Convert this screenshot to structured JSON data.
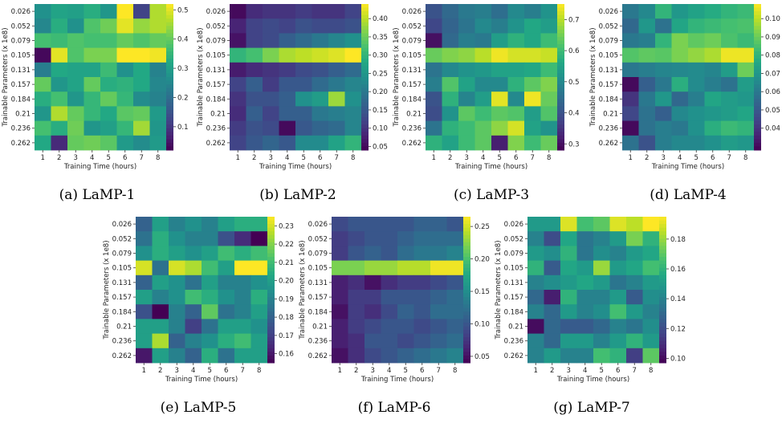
{
  "shared": {
    "x_ticks": [
      "1",
      "2",
      "3",
      "4",
      "5",
      "6",
      "7",
      "8"
    ],
    "y_ticks": [
      "0.026",
      "0.052",
      "0.079",
      "0.105",
      "0.131",
      "0.157",
      "0.184",
      "0.21",
      "0.236",
      "0.262"
    ],
    "xlabel": "Training Time (hours)",
    "ylabel": "Trainable Parameters (x 1e8)"
  },
  "chart_data": [
    {
      "type": "heatmap",
      "caption": "(a) LaMP-1",
      "vmin": 0.02,
      "vmax": 0.52,
      "colorbar_ticks": [
        "0.1",
        "0.2",
        "0.3",
        "0.4",
        "0.5"
      ],
      "colorbar_values": [
        0.1,
        0.2,
        0.3,
        0.4,
        0.5
      ],
      "values": [
        [
          0.27,
          0.31,
          0.3,
          0.33,
          0.28,
          0.52,
          0.12,
          0.46
        ],
        [
          0.25,
          0.33,
          0.27,
          0.38,
          0.41,
          0.5,
          0.44,
          0.46
        ],
        [
          0.37,
          0.36,
          0.38,
          0.37,
          0.37,
          0.4,
          0.38,
          0.4
        ],
        [
          0.03,
          0.5,
          0.38,
          0.42,
          0.42,
          0.52,
          0.52,
          0.51
        ],
        [
          0.23,
          0.32,
          0.31,
          0.31,
          0.36,
          0.27,
          0.32,
          0.24
        ],
        [
          0.4,
          0.28,
          0.31,
          0.4,
          0.33,
          0.34,
          0.32,
          0.25
        ],
        [
          0.33,
          0.37,
          0.28,
          0.35,
          0.4,
          0.35,
          0.26,
          0.24
        ],
        [
          0.28,
          0.46,
          0.4,
          0.35,
          0.32,
          0.39,
          0.4,
          0.29
        ],
        [
          0.37,
          0.33,
          0.41,
          0.28,
          0.3,
          0.35,
          0.45,
          0.28
        ],
        [
          0.32,
          0.08,
          0.4,
          0.41,
          0.39,
          0.29,
          0.26,
          0.29
        ]
      ]
    },
    {
      "type": "heatmap",
      "caption": "(b) LaMP-2",
      "vmin": 0.04,
      "vmax": 0.44,
      "colorbar_ticks": [
        "0.05",
        "0.10",
        "0.15",
        "0.20",
        "0.25",
        "0.30",
        "0.35",
        "0.40"
      ],
      "colorbar_values": [
        0.05,
        0.1,
        0.15,
        0.2,
        0.25,
        0.3,
        0.35,
        0.4
      ],
      "values": [
        [
          0.05,
          0.09,
          0.1,
          0.1,
          0.11,
          0.1,
          0.1,
          0.12
        ],
        [
          0.08,
          0.12,
          0.13,
          0.12,
          0.14,
          0.13,
          0.13,
          0.14
        ],
        [
          0.06,
          0.12,
          0.13,
          0.16,
          0.18,
          0.2,
          0.22,
          0.24
        ],
        [
          0.3,
          0.32,
          0.36,
          0.39,
          0.4,
          0.41,
          0.42,
          0.44
        ],
        [
          0.07,
          0.09,
          0.1,
          0.11,
          0.13,
          0.14,
          0.16,
          0.18
        ],
        [
          0.12,
          0.16,
          0.11,
          0.15,
          0.15,
          0.18,
          0.2,
          0.22
        ],
        [
          0.1,
          0.14,
          0.14,
          0.16,
          0.24,
          0.26,
          0.38,
          0.24
        ],
        [
          0.09,
          0.16,
          0.12,
          0.16,
          0.16,
          0.2,
          0.21,
          0.22
        ],
        [
          0.11,
          0.14,
          0.13,
          0.05,
          0.15,
          0.17,
          0.18,
          0.22
        ],
        [
          0.12,
          0.15,
          0.17,
          0.15,
          0.23,
          0.23,
          0.27,
          0.3
        ]
      ]
    },
    {
      "type": "heatmap",
      "caption": "(c) LaMP-3",
      "vmin": 0.28,
      "vmax": 0.75,
      "colorbar_ticks": [
        "0.3",
        "0.4",
        "0.5",
        "0.6",
        "0.7"
      ],
      "colorbar_values": [
        0.3,
        0.4,
        0.5,
        0.6,
        0.7
      ],
      "values": [
        [
          0.4,
          0.44,
          0.47,
          0.48,
          0.45,
          0.5,
          0.48,
          0.52
        ],
        [
          0.38,
          0.43,
          0.46,
          0.5,
          0.48,
          0.52,
          0.56,
          0.54
        ],
        [
          0.3,
          0.44,
          0.48,
          0.47,
          0.54,
          0.58,
          0.56,
          0.6
        ],
        [
          0.64,
          0.66,
          0.67,
          0.7,
          0.74,
          0.72,
          0.72,
          0.71
        ],
        [
          0.46,
          0.5,
          0.52,
          0.53,
          0.55,
          0.55,
          0.56,
          0.6
        ],
        [
          0.48,
          0.62,
          0.55,
          0.5,
          0.5,
          0.58,
          0.63,
          0.66
        ],
        [
          0.4,
          0.58,
          0.49,
          0.54,
          0.73,
          0.5,
          0.74,
          0.64
        ],
        [
          0.39,
          0.52,
          0.63,
          0.6,
          0.63,
          0.62,
          0.54,
          0.62
        ],
        [
          0.46,
          0.58,
          0.6,
          0.63,
          0.67,
          0.72,
          0.55,
          0.52
        ],
        [
          0.58,
          0.55,
          0.6,
          0.63,
          0.32,
          0.66,
          0.6,
          0.64
        ]
      ]
    },
    {
      "type": "heatmap",
      "caption": "(d) LaMP-4",
      "vmin": 0.028,
      "vmax": 0.108,
      "colorbar_ticks": [
        "0.04",
        "0.05",
        "0.06",
        "0.07",
        "0.08",
        "0.09",
        "0.10"
      ],
      "colorbar_values": [
        0.04,
        0.05,
        0.06,
        0.07,
        0.08,
        0.09,
        0.1
      ],
      "values": [
        [
          0.06,
          0.065,
          0.08,
          0.07,
          0.074,
          0.077,
          0.08,
          0.082
        ],
        [
          0.055,
          0.07,
          0.058,
          0.075,
          0.08,
          0.082,
          0.084,
          0.085
        ],
        [
          0.06,
          0.062,
          0.08,
          0.092,
          0.088,
          0.09,
          0.085,
          0.082
        ],
        [
          0.086,
          0.088,
          0.087,
          0.092,
          0.095,
          0.098,
          0.106,
          0.106
        ],
        [
          0.06,
          0.062,
          0.064,
          0.065,
          0.066,
          0.064,
          0.072,
          0.09
        ],
        [
          0.03,
          0.052,
          0.06,
          0.078,
          0.066,
          0.062,
          0.058,
          0.072
        ],
        [
          0.04,
          0.06,
          0.07,
          0.055,
          0.062,
          0.075,
          0.072,
          0.07
        ],
        [
          0.045,
          0.058,
          0.052,
          0.065,
          0.068,
          0.07,
          0.072,
          0.075
        ],
        [
          0.03,
          0.058,
          0.062,
          0.06,
          0.068,
          0.078,
          0.082,
          0.08
        ],
        [
          0.058,
          0.048,
          0.062,
          0.065,
          0.065,
          0.068,
          0.072,
          0.07
        ]
      ]
    },
    {
      "type": "heatmap",
      "caption": "(e) LaMP-5",
      "vmin": 0.155,
      "vmax": 0.235,
      "colorbar_ticks": [
        "0.16",
        "0.17",
        "0.18",
        "0.19",
        "0.20",
        "0.21",
        "0.22",
        "0.23"
      ],
      "colorbar_values": [
        0.16,
        0.17,
        0.18,
        0.19,
        0.2,
        0.21,
        0.22,
        0.23
      ],
      "values": [
        [
          0.18,
          0.2,
          0.19,
          0.195,
          0.19,
          0.2,
          0.205,
          0.205
        ],
        [
          0.185,
          0.205,
          0.195,
          0.19,
          0.19,
          0.175,
          0.165,
          0.155
        ],
        [
          0.195,
          0.205,
          0.2,
          0.195,
          0.2,
          0.21,
          0.205,
          0.21
        ],
        [
          0.23,
          0.185,
          0.23,
          0.225,
          0.21,
          0.2,
          0.235,
          0.235
        ],
        [
          0.18,
          0.2,
          0.195,
          0.185,
          0.2,
          0.19,
          0.19,
          0.195
        ],
        [
          0.2,
          0.19,
          0.195,
          0.21,
          0.205,
          0.195,
          0.19,
          0.205
        ],
        [
          0.175,
          0.155,
          0.19,
          0.18,
          0.215,
          0.185,
          0.19,
          0.2
        ],
        [
          0.2,
          0.2,
          0.19,
          0.17,
          0.185,
          0.2,
          0.2,
          0.195
        ],
        [
          0.2,
          0.225,
          0.18,
          0.19,
          0.195,
          0.205,
          0.21,
          0.2
        ],
        [
          0.16,
          0.2,
          0.19,
          0.18,
          0.205,
          0.185,
          0.2,
          0.2
        ]
      ]
    },
    {
      "type": "heatmap",
      "caption": "(f) LaMP-6",
      "vmin": 0.04,
      "vmax": 0.265,
      "colorbar_ticks": [
        "0.05",
        "0.10",
        "0.15",
        "0.20",
        "0.25"
      ],
      "colorbar_values": [
        0.05,
        0.1,
        0.15,
        0.2,
        0.25
      ],
      "values": [
        [
          0.09,
          0.1,
          0.1,
          0.1,
          0.1,
          0.11,
          0.11,
          0.1
        ],
        [
          0.08,
          0.09,
          0.1,
          0.1,
          0.11,
          0.12,
          0.12,
          0.12
        ],
        [
          0.08,
          0.1,
          0.11,
          0.1,
          0.12,
          0.13,
          0.13,
          0.14
        ],
        [
          0.22,
          0.22,
          0.23,
          0.23,
          0.24,
          0.24,
          0.26,
          0.26
        ],
        [
          0.06,
          0.07,
          0.05,
          0.07,
          0.08,
          0.08,
          0.09,
          0.1
        ],
        [
          0.06,
          0.08,
          0.08,
          0.1,
          0.1,
          0.1,
          0.11,
          0.12
        ],
        [
          0.05,
          0.08,
          0.07,
          0.09,
          0.11,
          0.1,
          0.12,
          0.12
        ],
        [
          0.06,
          0.08,
          0.09,
          0.1,
          0.1,
          0.09,
          0.1,
          0.11
        ],
        [
          0.06,
          0.07,
          0.1,
          0.1,
          0.09,
          0.1,
          0.11,
          0.12
        ],
        [
          0.05,
          0.07,
          0.09,
          0.1,
          0.11,
          0.12,
          0.13,
          0.14
        ]
      ]
    },
    {
      "type": "heatmap",
      "caption": "(g) LaMP-7",
      "vmin": 0.097,
      "vmax": 0.195,
      "colorbar_ticks": [
        "0.10",
        "0.12",
        "0.14",
        "0.16",
        "0.18"
      ],
      "colorbar_values": [
        0.1,
        0.12,
        0.14,
        0.16,
        0.18
      ],
      "values": [
        [
          0.15,
          0.15,
          0.19,
          0.165,
          0.17,
          0.19,
          0.185,
          0.195
        ],
        [
          0.14,
          0.12,
          0.155,
          0.135,
          0.14,
          0.15,
          0.175,
          0.16
        ],
        [
          0.15,
          0.145,
          0.16,
          0.135,
          0.145,
          0.14,
          0.15,
          0.155
        ],
        [
          0.16,
          0.125,
          0.155,
          0.15,
          0.18,
          0.15,
          0.155,
          0.165
        ],
        [
          0.14,
          0.145,
          0.15,
          0.155,
          0.15,
          0.135,
          0.14,
          0.15
        ],
        [
          0.13,
          0.105,
          0.16,
          0.14,
          0.14,
          0.15,
          0.125,
          0.145
        ],
        [
          0.14,
          0.13,
          0.15,
          0.14,
          0.145,
          0.165,
          0.15,
          0.14
        ],
        [
          0.1,
          0.13,
          0.125,
          0.125,
          0.13,
          0.14,
          0.135,
          0.145
        ],
        [
          0.14,
          0.13,
          0.15,
          0.15,
          0.14,
          0.15,
          0.16,
          0.15
        ],
        [
          0.14,
          0.15,
          0.14,
          0.14,
          0.165,
          0.16,
          0.115,
          0.17
        ]
      ]
    }
  ]
}
